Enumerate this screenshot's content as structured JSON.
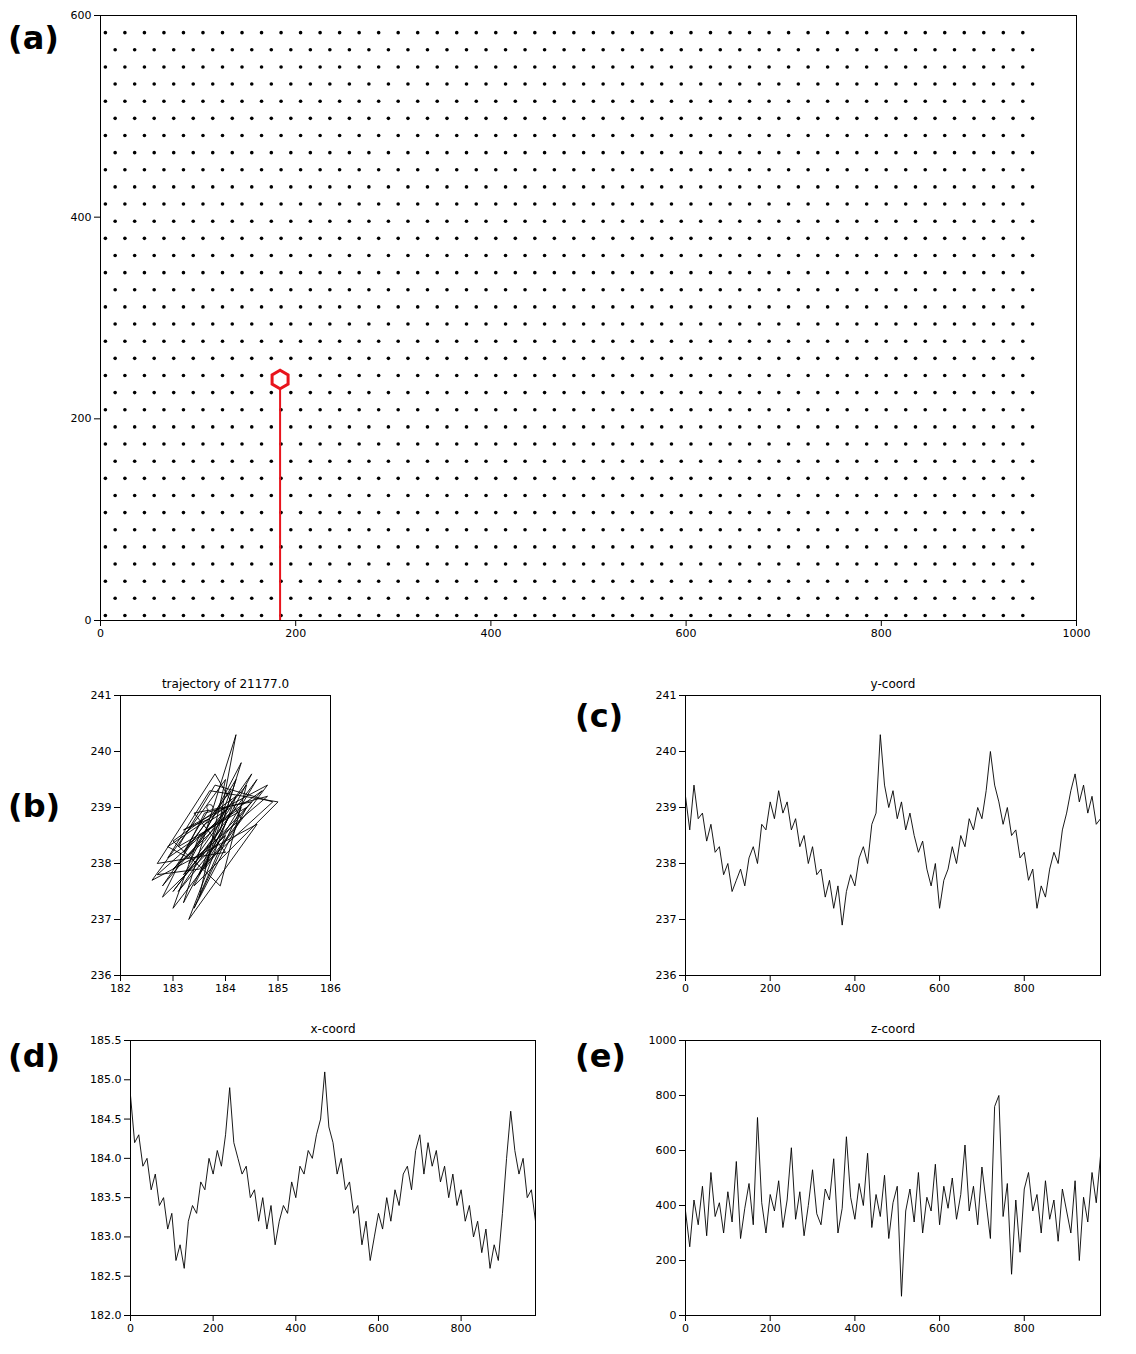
{
  "chart_data": [
    {
      "panel": "(a)",
      "type": "scatter",
      "color": "#000000",
      "xlim": [
        0,
        1000
      ],
      "xticks": [
        0,
        200,
        400,
        600,
        800,
        1000
      ],
      "ylim": [
        0,
        600
      ],
      "yticks": [
        0,
        200,
        400,
        600
      ],
      "particles": {
        "rows_y": [
          5,
          22,
          39,
          56,
          73,
          90,
          107,
          124,
          141,
          158,
          175,
          192,
          209,
          226,
          243,
          260,
          277,
          294,
          311,
          328,
          345,
          362,
          379,
          396,
          413,
          430,
          447,
          464,
          481,
          498,
          515,
          532,
          549,
          566,
          583
        ],
        "rows_x": [
          [
            5,
            25,
            45,
            65,
            85,
            105,
            125,
            145,
            165,
            185,
            205,
            225,
            245,
            265,
            285,
            305,
            325,
            345,
            365,
            385,
            405,
            425,
            445,
            465,
            485,
            505,
            525,
            545,
            565,
            585,
            605,
            625,
            645,
            665,
            685,
            705,
            725,
            745,
            765,
            785,
            805,
            825,
            845,
            865,
            885,
            905,
            925,
            945
          ],
          [
            15,
            35,
            55,
            75,
            95,
            115,
            135,
            155,
            175,
            195,
            215,
            235,
            255,
            275,
            295,
            315,
            335,
            355,
            375,
            395,
            415,
            435,
            455,
            475,
            495,
            515,
            535,
            555,
            575,
            595,
            615,
            635,
            655,
            675,
            695,
            715,
            735,
            755,
            775,
            795,
            815,
            835,
            855,
            875,
            895,
            915,
            935,
            955
          ]
        ]
      },
      "marker": {
        "x": 184,
        "y": 239,
        "color": "#e8141c"
      }
    },
    {
      "panel": "(b)",
      "type": "line",
      "title": "trajectory of 21177.0",
      "color": "#000000",
      "xlim": [
        182,
        186
      ],
      "xticks": [
        182,
        183,
        184,
        185,
        186
      ],
      "ylim": [
        236,
        241
      ],
      "yticks": [
        236,
        237,
        238,
        239,
        240,
        241
      ],
      "x": [
        183.7,
        183.2,
        184.1,
        183.5,
        184.6,
        183.0,
        183.9,
        184.3,
        183.3,
        184.8,
        183.6,
        182.8,
        184.0,
        183.4,
        184.4,
        183.1,
        183.8,
        184.9,
        183.5,
        182.7,
        183.9,
        184.2,
        183.2,
        184.5,
        183.6,
        183.0,
        184.1,
        183.4,
        185.0,
        183.7,
        182.9,
        184.3,
        183.5,
        184.0,
        182.6,
        183.8,
        184.6,
        183.3,
        184.2,
        183.0,
        183.9,
        184.4,
        182.8,
        183.6,
        184.1,
        183.2,
        184.7,
        183.5,
        183.0,
        184.3,
        183.8,
        182.7,
        184.0,
        183.4,
        184.5,
        183.1,
        183.9,
        184.2,
        183.3,
        182.9,
        184.0,
        183.6,
        184.8,
        183.2,
        183.7
      ],
      "values": [
        239.0,
        238.2,
        239.3,
        237.8,
        239.5,
        237.5,
        238.6,
        239.8,
        238.0,
        239.2,
        238.9,
        237.4,
        238.5,
        237.2,
        239.0,
        238.3,
        239.4,
        239.1,
        237.9,
        237.8,
        238.8,
        240.3,
        237.3,
        239.6,
        238.4,
        237.9,
        238.9,
        237.6,
        239.1,
        239.3,
        238.1,
        239.0,
        237.4,
        239.5,
        237.7,
        238.3,
        238.7,
        237.0,
        239.2,
        238.4,
        237.6,
        239.4,
        237.6,
        238.7,
        239.0,
        237.8,
        239.3,
        238.5,
        237.2,
        238.8,
        239.6,
        238.0,
        238.2,
        238.9,
        239.1,
        237.5,
        238.6,
        239.5,
        238.1,
        238.3,
        239.0,
        237.9,
        239.4,
        238.6,
        238.8
      ],
      "marker": {
        "x": 183.7,
        "y": 239.0,
        "color": "#ffffff"
      }
    },
    {
      "panel": "(c)",
      "type": "line",
      "title": "y-coord",
      "color": "#000000",
      "xlim": [
        0,
        980
      ],
      "xticks": [
        0,
        200,
        400,
        600,
        800
      ],
      "ylim": [
        236,
        241
      ],
      "yticks": [
        236,
        237,
        238,
        239,
        240,
        241
      ],
      "x": [
        0,
        10,
        20,
        30,
        40,
        50,
        60,
        70,
        80,
        90,
        100,
        110,
        120,
        130,
        140,
        150,
        160,
        170,
        180,
        190,
        200,
        210,
        220,
        230,
        240,
        250,
        260,
        270,
        280,
        290,
        300,
        310,
        320,
        330,
        340,
        350,
        360,
        370,
        380,
        390,
        400,
        410,
        420,
        430,
        440,
        450,
        460,
        470,
        480,
        490,
        500,
        510,
        520,
        530,
        540,
        550,
        560,
        570,
        580,
        590,
        600,
        610,
        620,
        630,
        640,
        650,
        660,
        670,
        680,
        690,
        700,
        710,
        720,
        730,
        740,
        750,
        760,
        770,
        780,
        790,
        800,
        810,
        820,
        830,
        840,
        850,
        860,
        870,
        880,
        890,
        900,
        910,
        920,
        930,
        940,
        950,
        960,
        970,
        980
      ],
      "values": [
        239.2,
        238.6,
        239.4,
        238.8,
        238.9,
        238.4,
        238.7,
        238.2,
        238.3,
        237.8,
        238.0,
        237.5,
        237.7,
        237.9,
        237.6,
        238.1,
        238.3,
        238.0,
        238.7,
        238.6,
        239.1,
        238.8,
        239.3,
        238.9,
        239.1,
        238.6,
        238.8,
        238.3,
        238.5,
        238.0,
        238.3,
        237.8,
        237.9,
        237.4,
        237.7,
        237.2,
        237.6,
        236.9,
        237.5,
        237.8,
        237.6,
        238.1,
        238.3,
        238.0,
        238.7,
        238.9,
        240.3,
        239.4,
        239.0,
        239.3,
        238.8,
        239.1,
        238.6,
        238.9,
        238.5,
        238.2,
        238.4,
        237.9,
        237.6,
        238.0,
        237.2,
        237.7,
        237.9,
        238.3,
        238.0,
        238.5,
        238.3,
        238.8,
        238.6,
        239.0,
        238.8,
        239.3,
        240.0,
        239.4,
        239.1,
        238.7,
        239.0,
        238.5,
        238.6,
        238.1,
        238.2,
        237.7,
        237.9,
        237.2,
        237.6,
        237.4,
        237.9,
        238.2,
        238.0,
        238.6,
        238.9,
        239.3,
        239.6,
        239.1,
        239.4,
        238.9,
        239.2,
        238.7,
        238.8
      ]
    },
    {
      "panel": "(d)",
      "type": "line",
      "title": "x-coord",
      "color": "#000000",
      "xlim": [
        0,
        980
      ],
      "xticks": [
        0,
        200,
        400,
        600,
        800
      ],
      "ylim": [
        182,
        185.5
      ],
      "yticks": [
        {
          "value": 182,
          "label": "182.0"
        },
        {
          "value": 182.5,
          "label": "182.5"
        },
        {
          "value": 183,
          "label": "183.0"
        },
        {
          "value": 183.5,
          "label": "183.5"
        },
        {
          "value": 184,
          "label": "184.0"
        },
        {
          "value": 184.5,
          "label": "184.5"
        },
        {
          "value": 185,
          "label": "185.0"
        },
        {
          "value": 185.5,
          "label": "185.5"
        }
      ],
      "x": [
        0,
        10,
        20,
        30,
        40,
        50,
        60,
        70,
        80,
        90,
        100,
        110,
        120,
        130,
        140,
        150,
        160,
        170,
        180,
        190,
        200,
        210,
        220,
        230,
        240,
        250,
        260,
        270,
        280,
        290,
        300,
        310,
        320,
        330,
        340,
        350,
        360,
        370,
        380,
        390,
        400,
        410,
        420,
        430,
        440,
        450,
        460,
        470,
        480,
        490,
        500,
        510,
        520,
        530,
        540,
        550,
        560,
        570,
        580,
        590,
        600,
        610,
        620,
        630,
        640,
        650,
        660,
        670,
        680,
        690,
        700,
        710,
        720,
        730,
        740,
        750,
        760,
        770,
        780,
        790,
        800,
        810,
        820,
        830,
        840,
        850,
        860,
        870,
        880,
        890,
        900,
        910,
        920,
        930,
        940,
        950,
        960,
        970,
        980
      ],
      "values": [
        184.8,
        184.2,
        184.3,
        183.9,
        184.0,
        183.6,
        183.8,
        183.4,
        183.5,
        183.1,
        183.3,
        182.7,
        182.9,
        182.6,
        183.2,
        183.4,
        183.3,
        183.7,
        183.6,
        184.0,
        183.8,
        184.1,
        183.9,
        184.3,
        184.9,
        184.2,
        184.0,
        183.8,
        183.9,
        183.5,
        183.6,
        183.2,
        183.5,
        183.1,
        183.4,
        182.9,
        183.2,
        183.4,
        183.3,
        183.7,
        183.5,
        183.9,
        183.8,
        184.1,
        184.0,
        184.3,
        184.5,
        185.1,
        184.4,
        184.2,
        183.8,
        184.0,
        183.6,
        183.7,
        183.3,
        183.4,
        182.9,
        183.2,
        182.7,
        183.0,
        183.3,
        183.1,
        183.5,
        183.2,
        183.6,
        183.4,
        183.8,
        183.9,
        183.6,
        184.1,
        184.3,
        183.8,
        184.2,
        183.9,
        184.1,
        183.7,
        183.9,
        183.5,
        183.8,
        183.4,
        183.6,
        183.2,
        183.4,
        183.0,
        183.2,
        182.8,
        183.1,
        182.6,
        182.9,
        182.7,
        183.3,
        184.0,
        184.6,
        184.1,
        183.8,
        184.0,
        183.5,
        183.6,
        183.2
      ]
    },
    {
      "panel": "(e)",
      "type": "line",
      "title": "z-coord",
      "color": "#000000",
      "xlim": [
        0,
        980
      ],
      "xticks": [
        0,
        200,
        400,
        600,
        800
      ],
      "ylim": [
        0,
        1000
      ],
      "yticks": [
        0,
        200,
        400,
        600,
        800,
        1000
      ],
      "x": [
        0,
        10,
        20,
        30,
        40,
        50,
        60,
        70,
        80,
        90,
        100,
        110,
        120,
        130,
        140,
        150,
        160,
        170,
        180,
        190,
        200,
        210,
        220,
        230,
        240,
        250,
        260,
        270,
        280,
        290,
        300,
        310,
        320,
        330,
        340,
        350,
        360,
        370,
        380,
        390,
        400,
        410,
        420,
        430,
        440,
        450,
        460,
        470,
        480,
        490,
        500,
        510,
        520,
        530,
        540,
        550,
        560,
        570,
        580,
        590,
        600,
        610,
        620,
        630,
        640,
        650,
        660,
        670,
        680,
        690,
        700,
        710,
        720,
        730,
        740,
        750,
        760,
        770,
        780,
        790,
        800,
        810,
        820,
        830,
        840,
        850,
        860,
        870,
        880,
        890,
        900,
        910,
        920,
        930,
        940,
        950,
        960,
        970,
        980
      ],
      "values": [
        380,
        250,
        420,
        330,
        470,
        290,
        520,
        360,
        410,
        300,
        450,
        340,
        560,
        280,
        390,
        480,
        330,
        720,
        410,
        300,
        440,
        380,
        490,
        320,
        420,
        610,
        350,
        450,
        290,
        400,
        530,
        370,
        330,
        460,
        420,
        570,
        300,
        390,
        650,
        430,
        350,
        480,
        400,
        590,
        320,
        440,
        360,
        510,
        280,
        410,
        470,
        70,
        380,
        460,
        340,
        520,
        300,
        430,
        380,
        550,
        330,
        470,
        390,
        500,
        350,
        440,
        620,
        380,
        470,
        330,
        540,
        410,
        280,
        760,
        800,
        360,
        480,
        150,
        420,
        230,
        460,
        520,
        380,
        440,
        300,
        490,
        350,
        420,
        270,
        460,
        380,
        300,
        490,
        200,
        430,
        340,
        520,
        410,
        580
      ]
    }
  ]
}
